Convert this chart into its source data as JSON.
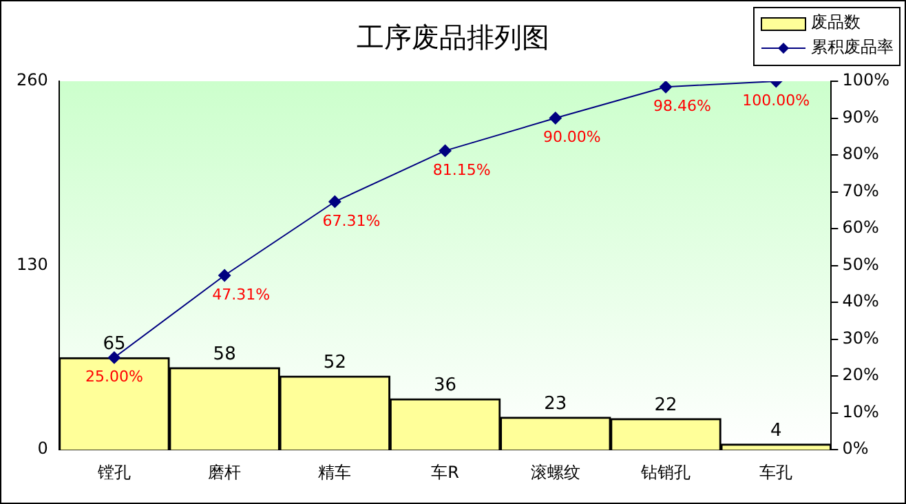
{
  "chart_data": {
    "type": "bar",
    "title": "工序废品排列图",
    "categories": [
      "镗孔",
      "磨杆",
      "精车",
      "车R",
      "滚螺纹",
      "钻销孔",
      "车孔"
    ],
    "series": [
      {
        "name": "废品数",
        "color": "#ffff99",
        "values": [
          65,
          58,
          52,
          36,
          23,
          22,
          4
        ],
        "value_labels": [
          "65",
          "58",
          "52",
          "36",
          "23",
          "22",
          "4"
        ]
      },
      {
        "name": "累积废品率",
        "type": "line",
        "axis": "y2",
        "color": "#000080",
        "marker": "diamond",
        "values": [
          25.0,
          47.31,
          67.31,
          81.15,
          90.0,
          98.46,
          100.0
        ],
        "value_labels": [
          "25.00%",
          "47.31%",
          "67.31%",
          "81.15%",
          "90.00%",
          "98.46%",
          "100.00%"
        ]
      }
    ],
    "ylim": [
      0,
      260
    ],
    "yticks": [
      0,
      130,
      260
    ],
    "y2lim": [
      0,
      100
    ],
    "y2ticks": [
      {
        "value": 0,
        "label": "0%"
      },
      {
        "value": 10,
        "label": "10%"
      },
      {
        "value": 20,
        "label": "20%"
      },
      {
        "value": 30,
        "label": "30%"
      },
      {
        "value": 40,
        "label": "40%"
      },
      {
        "value": 50,
        "label": "50%"
      },
      {
        "value": 60,
        "label": "60%"
      },
      {
        "value": 70,
        "label": "70%"
      },
      {
        "value": 80,
        "label": "80%"
      },
      {
        "value": 90,
        "label": "90%"
      },
      {
        "value": 100,
        "label": "100%"
      }
    ],
    "grid": false,
    "legend": "top right"
  }
}
